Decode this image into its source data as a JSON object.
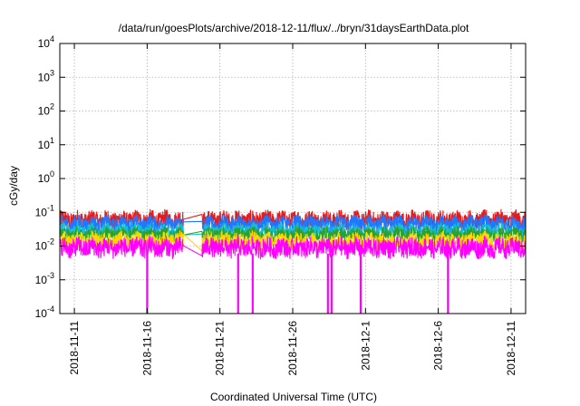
{
  "chart_data": {
    "type": "line",
    "title": "/data/run/goesPlots/archive/2018-12-11/flux/../bryn/31daysEarthData.plot",
    "xlabel": "Coordinated Universal Time (UTC)",
    "ylabel": "cGy/day",
    "yscale": "log",
    "ylim": [
      0.0001,
      10000
    ],
    "xlim": [
      "2018-11-10",
      "2018-12-12"
    ],
    "grid": true,
    "y_ticks": [
      {
        "value": 0.0001,
        "base": "10",
        "exp": "-4"
      },
      {
        "value": 0.001,
        "base": "10",
        "exp": "-3"
      },
      {
        "value": 0.01,
        "base": "10",
        "exp": "-2"
      },
      {
        "value": 0.1,
        "base": "10",
        "exp": "-1"
      },
      {
        "value": 1,
        "base": "10",
        "exp": "0"
      },
      {
        "value": 10,
        "base": "10",
        "exp": "1"
      },
      {
        "value": 100,
        "base": "10",
        "exp": "2"
      },
      {
        "value": 1000,
        "base": "10",
        "exp": "3"
      },
      {
        "value": 10000,
        "base": "10",
        "exp": "4"
      }
    ],
    "x_ticks": [
      {
        "date": "2018-11-11",
        "label": "2018-11-11"
      },
      {
        "date": "2018-11-16",
        "label": "2018-11-16"
      },
      {
        "date": "2018-11-21",
        "label": "2018-11-21"
      },
      {
        "date": "2018-11-26",
        "label": "2018-11-26"
      },
      {
        "date": "2018-12-01",
        "label": "2018-12-1"
      },
      {
        "date": "2018-12-06",
        "label": "2018-12-6"
      },
      {
        "date": "2018-12-11",
        "label": "2018-12-11"
      }
    ],
    "data_gap": [
      "2018-11-18T12:00",
      "2018-11-19T18:00"
    ],
    "series": [
      {
        "color": "#e41a1c",
        "approx_level": 0.06,
        "spread": 0.25
      },
      {
        "color": "#1f78ff",
        "approx_level": 0.045,
        "spread": 0.22
      },
      {
        "color": "#17becf",
        "approx_level": 0.028,
        "spread": 0.2
      },
      {
        "color": "#2ca02c",
        "approx_level": 0.022,
        "spread": 0.18
      },
      {
        "color": "#ffd700",
        "approx_level": 0.014,
        "spread": 0.25
      },
      {
        "color": "#ff00ff",
        "approx_level": 0.009,
        "spread": 0.28
      }
    ],
    "dropouts": [
      {
        "date": "2018-11-16T00:00",
        "min": 0.0001
      },
      {
        "date": "2018-11-22T06:00",
        "min": 0.0001
      },
      {
        "date": "2018-11-23T06:00",
        "min": 0.0001
      },
      {
        "date": "2018-11-28T10:00",
        "min": 0.0001
      },
      {
        "date": "2018-11-28T16:00",
        "min": 0.0001
      },
      {
        "date": "2018-11-30T16:00",
        "min": 0.0001
      },
      {
        "date": "2018-12-06T16:00",
        "min": 0.0001
      }
    ]
  }
}
